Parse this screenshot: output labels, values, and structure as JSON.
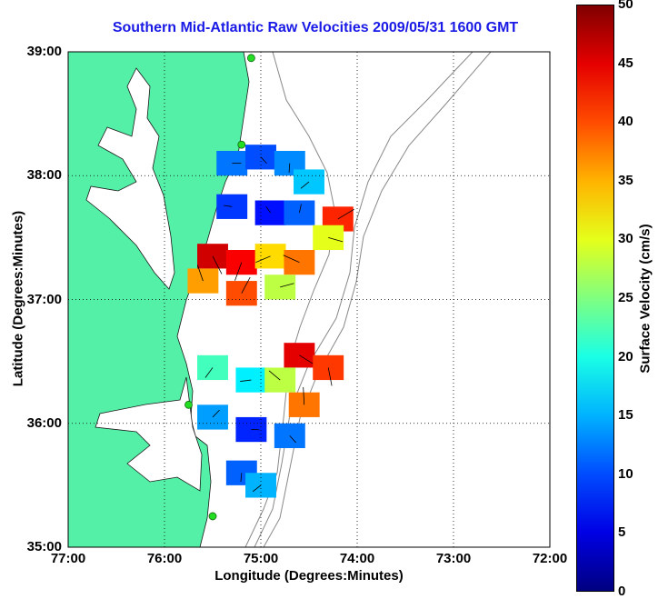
{
  "chart_data": {
    "type": "heatmap",
    "title": "Southern Mid-Atlantic Raw Velocities 2009/05/31 1600 GMT",
    "xlabel": "Longitude (Degrees:Minutes)",
    "ylabel": "Latitude (Degrees:Minutes)",
    "colorbar_label": "Surface Velocity (cm/s)",
    "x_ticks": [
      "77:00",
      "76:00",
      "75:00",
      "74:00",
      "73:00",
      "72:00"
    ],
    "y_ticks": [
      "39:00",
      "38:00",
      "37:00",
      "36:00",
      "35:00"
    ],
    "colorbar_ticks": [
      "50",
      "45",
      "40",
      "35",
      "30",
      "25",
      "20",
      "15",
      "10",
      "5",
      "0"
    ],
    "xlim": [
      -77,
      -72
    ],
    "ylim": [
      35,
      39
    ],
    "clim": [
      0,
      50
    ],
    "grid": true,
    "colormap": "jet",
    "land_color": "#55f0a8",
    "station_color": "#22dd22",
    "cells": [
      {
        "lon": -75.3,
        "lat": 38.1,
        "v": 12
      },
      {
        "lon": -75.0,
        "lat": 38.15,
        "v": 10
      },
      {
        "lon": -74.7,
        "lat": 38.1,
        "v": 13
      },
      {
        "lon": -74.5,
        "lat": 37.95,
        "v": 16
      },
      {
        "lon": -75.3,
        "lat": 37.75,
        "v": 9
      },
      {
        "lon": -74.9,
        "lat": 37.7,
        "v": 7
      },
      {
        "lon": -74.6,
        "lat": 37.7,
        "v": 11
      },
      {
        "lon": -74.2,
        "lat": 37.65,
        "v": 42
      },
      {
        "lon": -74.3,
        "lat": 37.5,
        "v": 30
      },
      {
        "lon": -75.5,
        "lat": 37.35,
        "v": 46
      },
      {
        "lon": -75.2,
        "lat": 37.3,
        "v": 44
      },
      {
        "lon": -74.9,
        "lat": 37.35,
        "v": 33
      },
      {
        "lon": -74.6,
        "lat": 37.3,
        "v": 38
      },
      {
        "lon": -75.6,
        "lat": 37.15,
        "v": 36
      },
      {
        "lon": -75.2,
        "lat": 37.05,
        "v": 40
      },
      {
        "lon": -74.8,
        "lat": 37.1,
        "v": 28
      },
      {
        "lon": -74.6,
        "lat": 36.55,
        "v": 45
      },
      {
        "lon": -74.3,
        "lat": 36.45,
        "v": 41
      },
      {
        "lon": -75.5,
        "lat": 36.45,
        "v": 22
      },
      {
        "lon": -75.1,
        "lat": 36.35,
        "v": 18
      },
      {
        "lon": -74.8,
        "lat": 36.35,
        "v": 28
      },
      {
        "lon": -74.55,
        "lat": 36.15,
        "v": 38
      },
      {
        "lon": -75.5,
        "lat": 36.05,
        "v": 14
      },
      {
        "lon": -75.1,
        "lat": 35.95,
        "v": 8
      },
      {
        "lon": -74.7,
        "lat": 35.9,
        "v": 12
      },
      {
        "lon": -75.2,
        "lat": 35.6,
        "v": 11
      },
      {
        "lon": -75.0,
        "lat": 35.5,
        "v": 15
      }
    ],
    "stations": [
      {
        "lon": -75.1,
        "lat": 38.95
      },
      {
        "lon": -75.2,
        "lat": 38.25
      },
      {
        "lon": -75.75,
        "lat": 36.15
      },
      {
        "lon": -75.5,
        "lat": 35.25
      }
    ]
  }
}
